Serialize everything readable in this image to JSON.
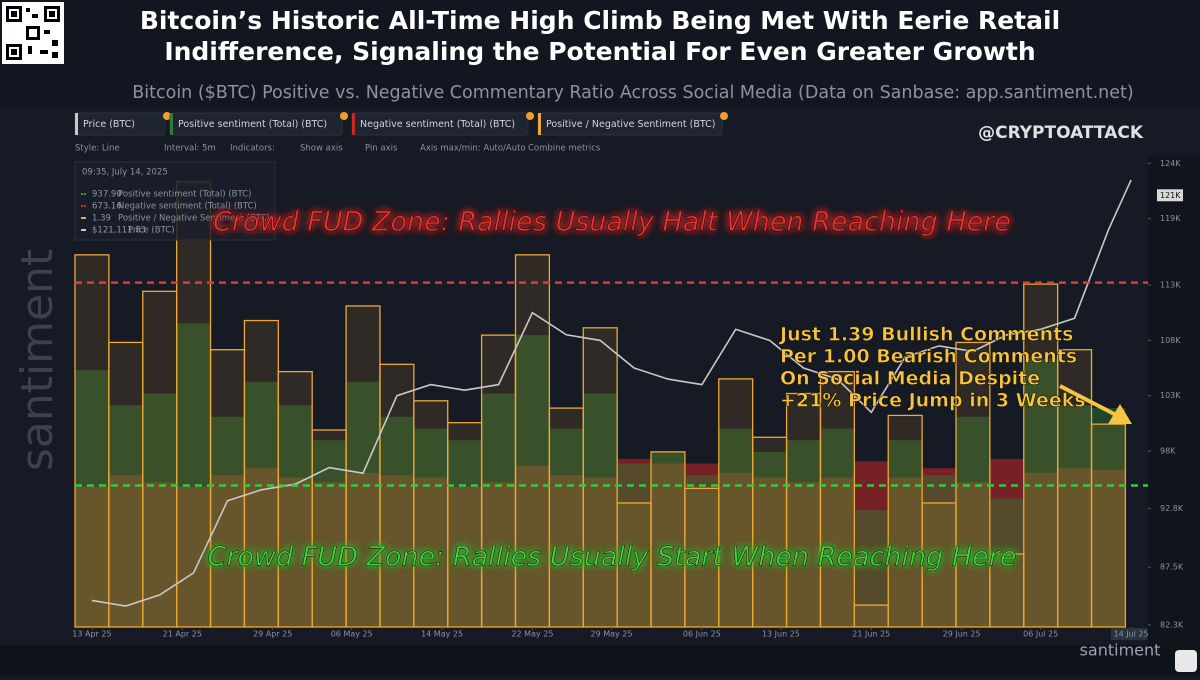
{
  "header": {
    "title_lines": [
      "Bitcoin’s Historic All-Time High Climb Being Met With Eerie Retail",
      "Indifference, Signaling the Potential For Even Greater Growth"
    ],
    "subtitle": "Bitcoin ($BTC) Positive vs. Negative Commentary Ratio Across Social Media (Data on Sanbase: app.santiment.net)",
    "handle": "@CRYPTOATTACK"
  },
  "toolbar": [
    "Style: Line",
    "Interval: 5m",
    "Indicators:",
    "Show axis",
    "Pin axis",
    "Axis max/min: Auto/Auto",
    "Combine metrics"
  ],
  "tooltip": {
    "time": "09:35, July 14, 2025",
    "rows": [
      {
        "value": "937.90",
        "label": "Positive sentiment (Total) (BTC)",
        "color": "#2e9b3e"
      },
      {
        "value": "673.16",
        "label": "Negative sentiment (Total) (BTC)",
        "color": "#d32f2f"
      },
      {
        "value": "1.39",
        "label": "Positive / Negative Sentiment (BTC)",
        "color": "#f0a830"
      },
      {
        "value": "$121,111.83",
        "label": "Price (BTC)",
        "color": "#cccccc"
      }
    ]
  },
  "watermarks": {
    "side": "santiment",
    "bottom": "santiment"
  },
  "chart_data": {
    "type": "combo",
    "xlim": [
      -1.5,
      93.5
    ],
    "xticks": [
      {
        "value": 0,
        "label": "13 Apr 25"
      },
      {
        "value": 8,
        "label": "21 Apr 25"
      },
      {
        "value": 16,
        "label": "29 Apr 25"
      },
      {
        "value": 23,
        "label": "06 May 25"
      },
      {
        "value": 31,
        "label": "14 May 25"
      },
      {
        "value": 39,
        "label": "22 May 25"
      },
      {
        "value": 46,
        "label": "29 May 25"
      },
      {
        "value": 54,
        "label": "06 Jun 25"
      },
      {
        "value": 61,
        "label": "13 Jun 25"
      },
      {
        "value": 69,
        "label": "21 Jun 25"
      },
      {
        "value": 77,
        "label": "29 Jun 25"
      },
      {
        "value": 84,
        "label": "06 Jul 25"
      },
      {
        "value": 92,
        "label": "14 Jul 25"
      }
    ],
    "ylim": [
      82100,
      124300
    ],
    "yticks": [
      {
        "value": 124000,
        "label": "124K"
      },
      {
        "value": 119000,
        "label": "119K"
      },
      {
        "value": 113000,
        "label": "113K"
      },
      {
        "value": 108000,
        "label": "108K"
      },
      {
        "value": 103000,
        "label": "103K"
      },
      {
        "value": 98000,
        "label": "98K"
      },
      {
        "value": 92800,
        "label": "92.8K"
      },
      {
        "value": 87500,
        "label": "87.5K"
      },
      {
        "value": 82300,
        "label": "82.3K"
      }
    ],
    "y2lim": [
      0,
      3.2
    ],
    "y3lim": [
      0,
      2000
    ],
    "price_tag": {
      "value": 121111.83,
      "label": "121K"
    },
    "series": [
      {
        "name": "Price (BTC)",
        "type": "line",
        "axis": "y",
        "color": "#c8c8c8",
        "x": [
          0,
          3,
          6,
          9,
          12,
          15,
          18,
          21,
          24,
          27,
          30,
          33,
          36,
          39,
          42,
          45,
          48,
          51,
          54,
          57,
          60,
          63,
          66,
          69,
          72,
          75,
          78,
          81,
          84,
          87,
          90,
          92
        ],
        "values": [
          84500,
          84000,
          85000,
          87000,
          93500,
          94500,
          95000,
          96500,
          96000,
          103000,
          104000,
          103500,
          104000,
          110500,
          108500,
          108000,
          105500,
          104500,
          104000,
          109000,
          108000,
          105500,
          104500,
          101500,
          106500,
          107500,
          107000,
          108500,
          109000,
          110000,
          118000,
          122500
        ]
      },
      {
        "name": "Negative sentiment (Total) (BTC)",
        "type": "bar",
        "axis": "y3",
        "color": "#c62828",
        "x": [
          0,
          3,
          6,
          9,
          12,
          15,
          18,
          21,
          24,
          27,
          30,
          33,
          36,
          39,
          42,
          45,
          48,
          51,
          54,
          57,
          60,
          63,
          66,
          69,
          72,
          75,
          78,
          81,
          84,
          87,
          90
        ],
        "values": [
          600,
          650,
          620,
          600,
          650,
          680,
          640,
          620,
          660,
          650,
          640,
          600,
          620,
          690,
          650,
          640,
          720,
          700,
          700,
          660,
          640,
          620,
          640,
          710,
          640,
          680,
          620,
          720,
          660,
          680,
          673.16
        ]
      },
      {
        "name": "Positive sentiment (Total) (BTC)",
        "type": "bar",
        "axis": "y3",
        "color": "#2e7d32",
        "x": [
          0,
          3,
          6,
          9,
          12,
          15,
          18,
          21,
          24,
          27,
          30,
          33,
          36,
          39,
          42,
          45,
          48,
          51,
          54,
          57,
          60,
          63,
          66,
          69,
          72,
          75,
          78,
          81,
          84,
          87,
          90
        ],
        "values": [
          1100,
          950,
          1000,
          1300,
          900,
          1050,
          950,
          800,
          1050,
          900,
          850,
          800,
          1000,
          1250,
          850,
          1000,
          700,
          750,
          650,
          850,
          750,
          800,
          850,
          500,
          800,
          650,
          900,
          550,
          1150,
          950,
          937.9
        ]
      },
      {
        "name": "Positive / Negative Sentiment (BTC)",
        "type": "bar",
        "axis": "y2",
        "color": "#f0a830",
        "x": [
          0,
          3,
          6,
          9,
          12,
          15,
          18,
          21,
          24,
          27,
          30,
          33,
          36,
          39,
          42,
          45,
          48,
          51,
          54,
          57,
          60,
          63,
          66,
          69,
          72,
          75,
          78,
          81,
          84,
          87,
          90
        ],
        "values": [
          2.55,
          1.95,
          2.3,
          3.05,
          1.9,
          2.1,
          1.75,
          1.35,
          2.2,
          1.8,
          1.55,
          1.4,
          2.0,
          2.55,
          1.5,
          2.05,
          0.85,
          1.2,
          0.95,
          1.7,
          1.3,
          1.6,
          1.75,
          0.15,
          1.45,
          0.85,
          1.95,
          0.5,
          2.35,
          1.9,
          1.39
        ]
      }
    ],
    "reference_lines": [
      {
        "value": 2.36,
        "color": "#e53935"
      },
      {
        "value": 0.97,
        "color": "#2ecc40"
      }
    ],
    "annotations": [
      {
        "text": "Crowd FUD Zone: Rallies Usually Halt When Reaching Here",
        "color": "#e53935"
      },
      {
        "text": "Crowd FUD Zone: Rallies Usually Start When Reaching Here",
        "color": "#33dd44"
      }
    ],
    "callout": [
      "Just 1.39 Bullish Comments",
      "Per 1.00 Bearish Comments",
      "On Social Media Despite",
      "+21% Price Jump in 3 Weeks"
    ]
  }
}
